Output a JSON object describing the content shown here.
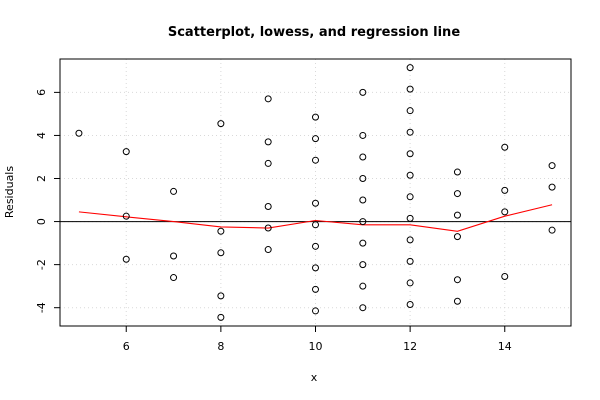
{
  "chart_data": {
    "type": "scatter",
    "title": "Scatterplot, lowess, and regression line",
    "xlabel": "x",
    "ylabel": "Residuals",
    "xlim": [
      4.6,
      15.4
    ],
    "ylim": [
      -4.85,
      7.55
    ],
    "xticks": [
      "6",
      "8",
      "10",
      "12",
      "14"
    ],
    "xtick_values": [
      6,
      8,
      10,
      12,
      14
    ],
    "yticks": [
      "-4",
      "-2",
      "0",
      "2",
      "4",
      "6"
    ],
    "ytick_values": [
      -4,
      -2,
      0,
      2,
      4,
      6
    ],
    "grid": true,
    "colors": {
      "points": "#000000",
      "lowess": "#ff0000",
      "regression": "#000000",
      "grid": "#d9d9d9"
    },
    "points": [
      [
        5,
        4.1
      ],
      [
        6,
        3.25
      ],
      [
        6,
        0.25
      ],
      [
        6,
        -1.75
      ],
      [
        7,
        1.4
      ],
      [
        7,
        -1.6
      ],
      [
        7,
        -2.6
      ],
      [
        8,
        4.55
      ],
      [
        8,
        -0.45
      ],
      [
        8,
        -1.45
      ],
      [
        8,
        -3.45
      ],
      [
        8,
        -4.45
      ],
      [
        9,
        5.7
      ],
      [
        9,
        3.7
      ],
      [
        9,
        2.7
      ],
      [
        9,
        0.7
      ],
      [
        9,
        -0.3
      ],
      [
        9,
        -1.3
      ],
      [
        10,
        4.85
      ],
      [
        10,
        3.85
      ],
      [
        10,
        2.85
      ],
      [
        10,
        0.85
      ],
      [
        10,
        -0.15
      ],
      [
        10,
        -1.15
      ],
      [
        10,
        -2.15
      ],
      [
        10,
        -3.15
      ],
      [
        10,
        -4.15
      ],
      [
        11,
        6.0
      ],
      [
        11,
        4.0
      ],
      [
        11,
        3.0
      ],
      [
        11,
        2.0
      ],
      [
        11,
        1.0
      ],
      [
        11,
        0.0
      ],
      [
        11,
        -1.0
      ],
      [
        11,
        -2.0
      ],
      [
        11,
        -3.0
      ],
      [
        11,
        -4.0
      ],
      [
        12,
        7.15
      ],
      [
        12,
        6.15
      ],
      [
        12,
        5.15
      ],
      [
        12,
        4.15
      ],
      [
        12,
        3.15
      ],
      [
        12,
        2.15
      ],
      [
        12,
        1.15
      ],
      [
        12,
        0.15
      ],
      [
        12,
        -0.85
      ],
      [
        12,
        -1.85
      ],
      [
        12,
        -2.85
      ],
      [
        12,
        -3.85
      ],
      [
        13,
        2.3
      ],
      [
        13,
        1.3
      ],
      [
        13,
        0.3
      ],
      [
        13,
        -0.7
      ],
      [
        13,
        -2.7
      ],
      [
        13,
        -3.7
      ],
      [
        14,
        3.45
      ],
      [
        14,
        1.45
      ],
      [
        14,
        0.45
      ],
      [
        14,
        -2.55
      ],
      [
        15,
        2.6
      ],
      [
        15,
        1.6
      ],
      [
        15,
        -0.4
      ]
    ],
    "lowess": [
      [
        5,
        0.45
      ],
      [
        6,
        0.22
      ],
      [
        7,
        0.0
      ],
      [
        8,
        -0.25
      ],
      [
        9,
        -0.3
      ],
      [
        10,
        0.05
      ],
      [
        11,
        -0.15
      ],
      [
        12,
        -0.15
      ],
      [
        13,
        -0.45
      ],
      [
        14,
        0.25
      ],
      [
        15,
        0.78
      ]
    ],
    "regression": {
      "intercept": 0,
      "slope": 0
    }
  }
}
